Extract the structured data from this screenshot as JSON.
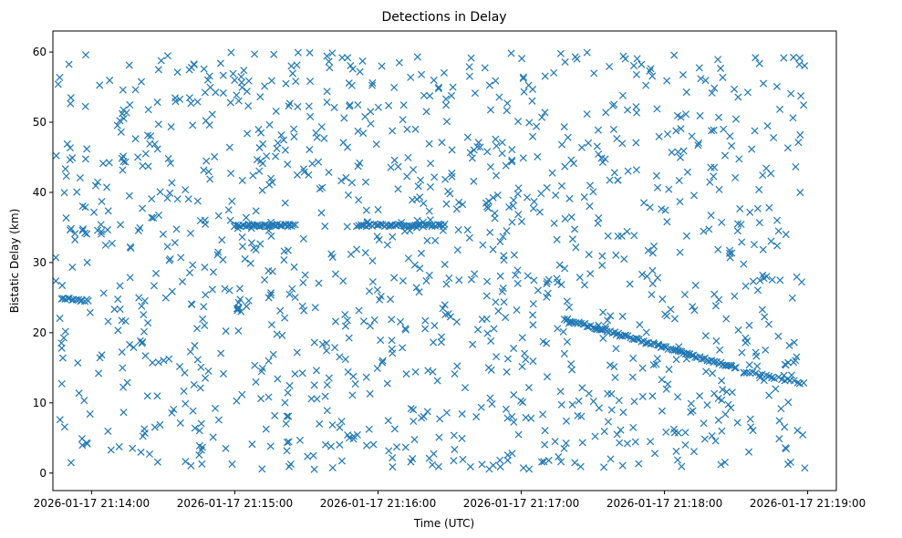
{
  "chart_data": {
    "type": "scatter",
    "title": "Detections in Delay",
    "xlabel": "Time (UTC)",
    "ylabel": "Bistatic Delay (km)",
    "marker": "x",
    "color": "#1f77b4",
    "x_unit": "minutes after 2026-01-17 21:14:00",
    "xlim": [
      -0.27,
      5.2
    ],
    "ylim": [
      -2.5,
      63
    ],
    "x_ticks": [
      {
        "value": 0,
        "label": "2026-01-17 21:14:00"
      },
      {
        "value": 1,
        "label": "2026-01-17 21:15:00"
      },
      {
        "value": 2,
        "label": "2026-01-17 21:16:00"
      },
      {
        "value": 3,
        "label": "2026-01-17 21:17:00"
      },
      {
        "value": 4,
        "label": "2026-01-17 21:18:00"
      },
      {
        "value": 5,
        "label": "2026-01-17 21:19:00"
      }
    ],
    "y_ticks": [
      0,
      10,
      20,
      30,
      40,
      50,
      60
    ],
    "x_range": [
      -0.25,
      4.98
    ],
    "y_range": [
      0.5,
      60
    ],
    "random_detections": {
      "count": 1250,
      "seed": 12345
    },
    "tracks": [
      {
        "name": "constant-delay band 1",
        "x_start": 1.0,
        "x_end": 1.42,
        "y_start": 35.3,
        "y_end": 35.3,
        "points": 40
      },
      {
        "name": "constant-delay band 2",
        "x_start": 1.85,
        "x_end": 2.47,
        "y_start": 35.3,
        "y_end": 35.3,
        "points": 45
      },
      {
        "name": "decreasing-delay track",
        "x_start": 3.3,
        "x_end": 4.5,
        "y_start": 22.0,
        "y_end": 15.0,
        "points": 90
      },
      {
        "name": "low-delay cluster",
        "x_start": 4.55,
        "x_end": 4.97,
        "y_start": 14.5,
        "y_end": 12.8,
        "points": 20
      },
      {
        "name": "left-edge cluster",
        "x_start": -0.21,
        "x_end": -0.02,
        "y_start": 24.8,
        "y_end": 24.6,
        "points": 14
      }
    ]
  }
}
